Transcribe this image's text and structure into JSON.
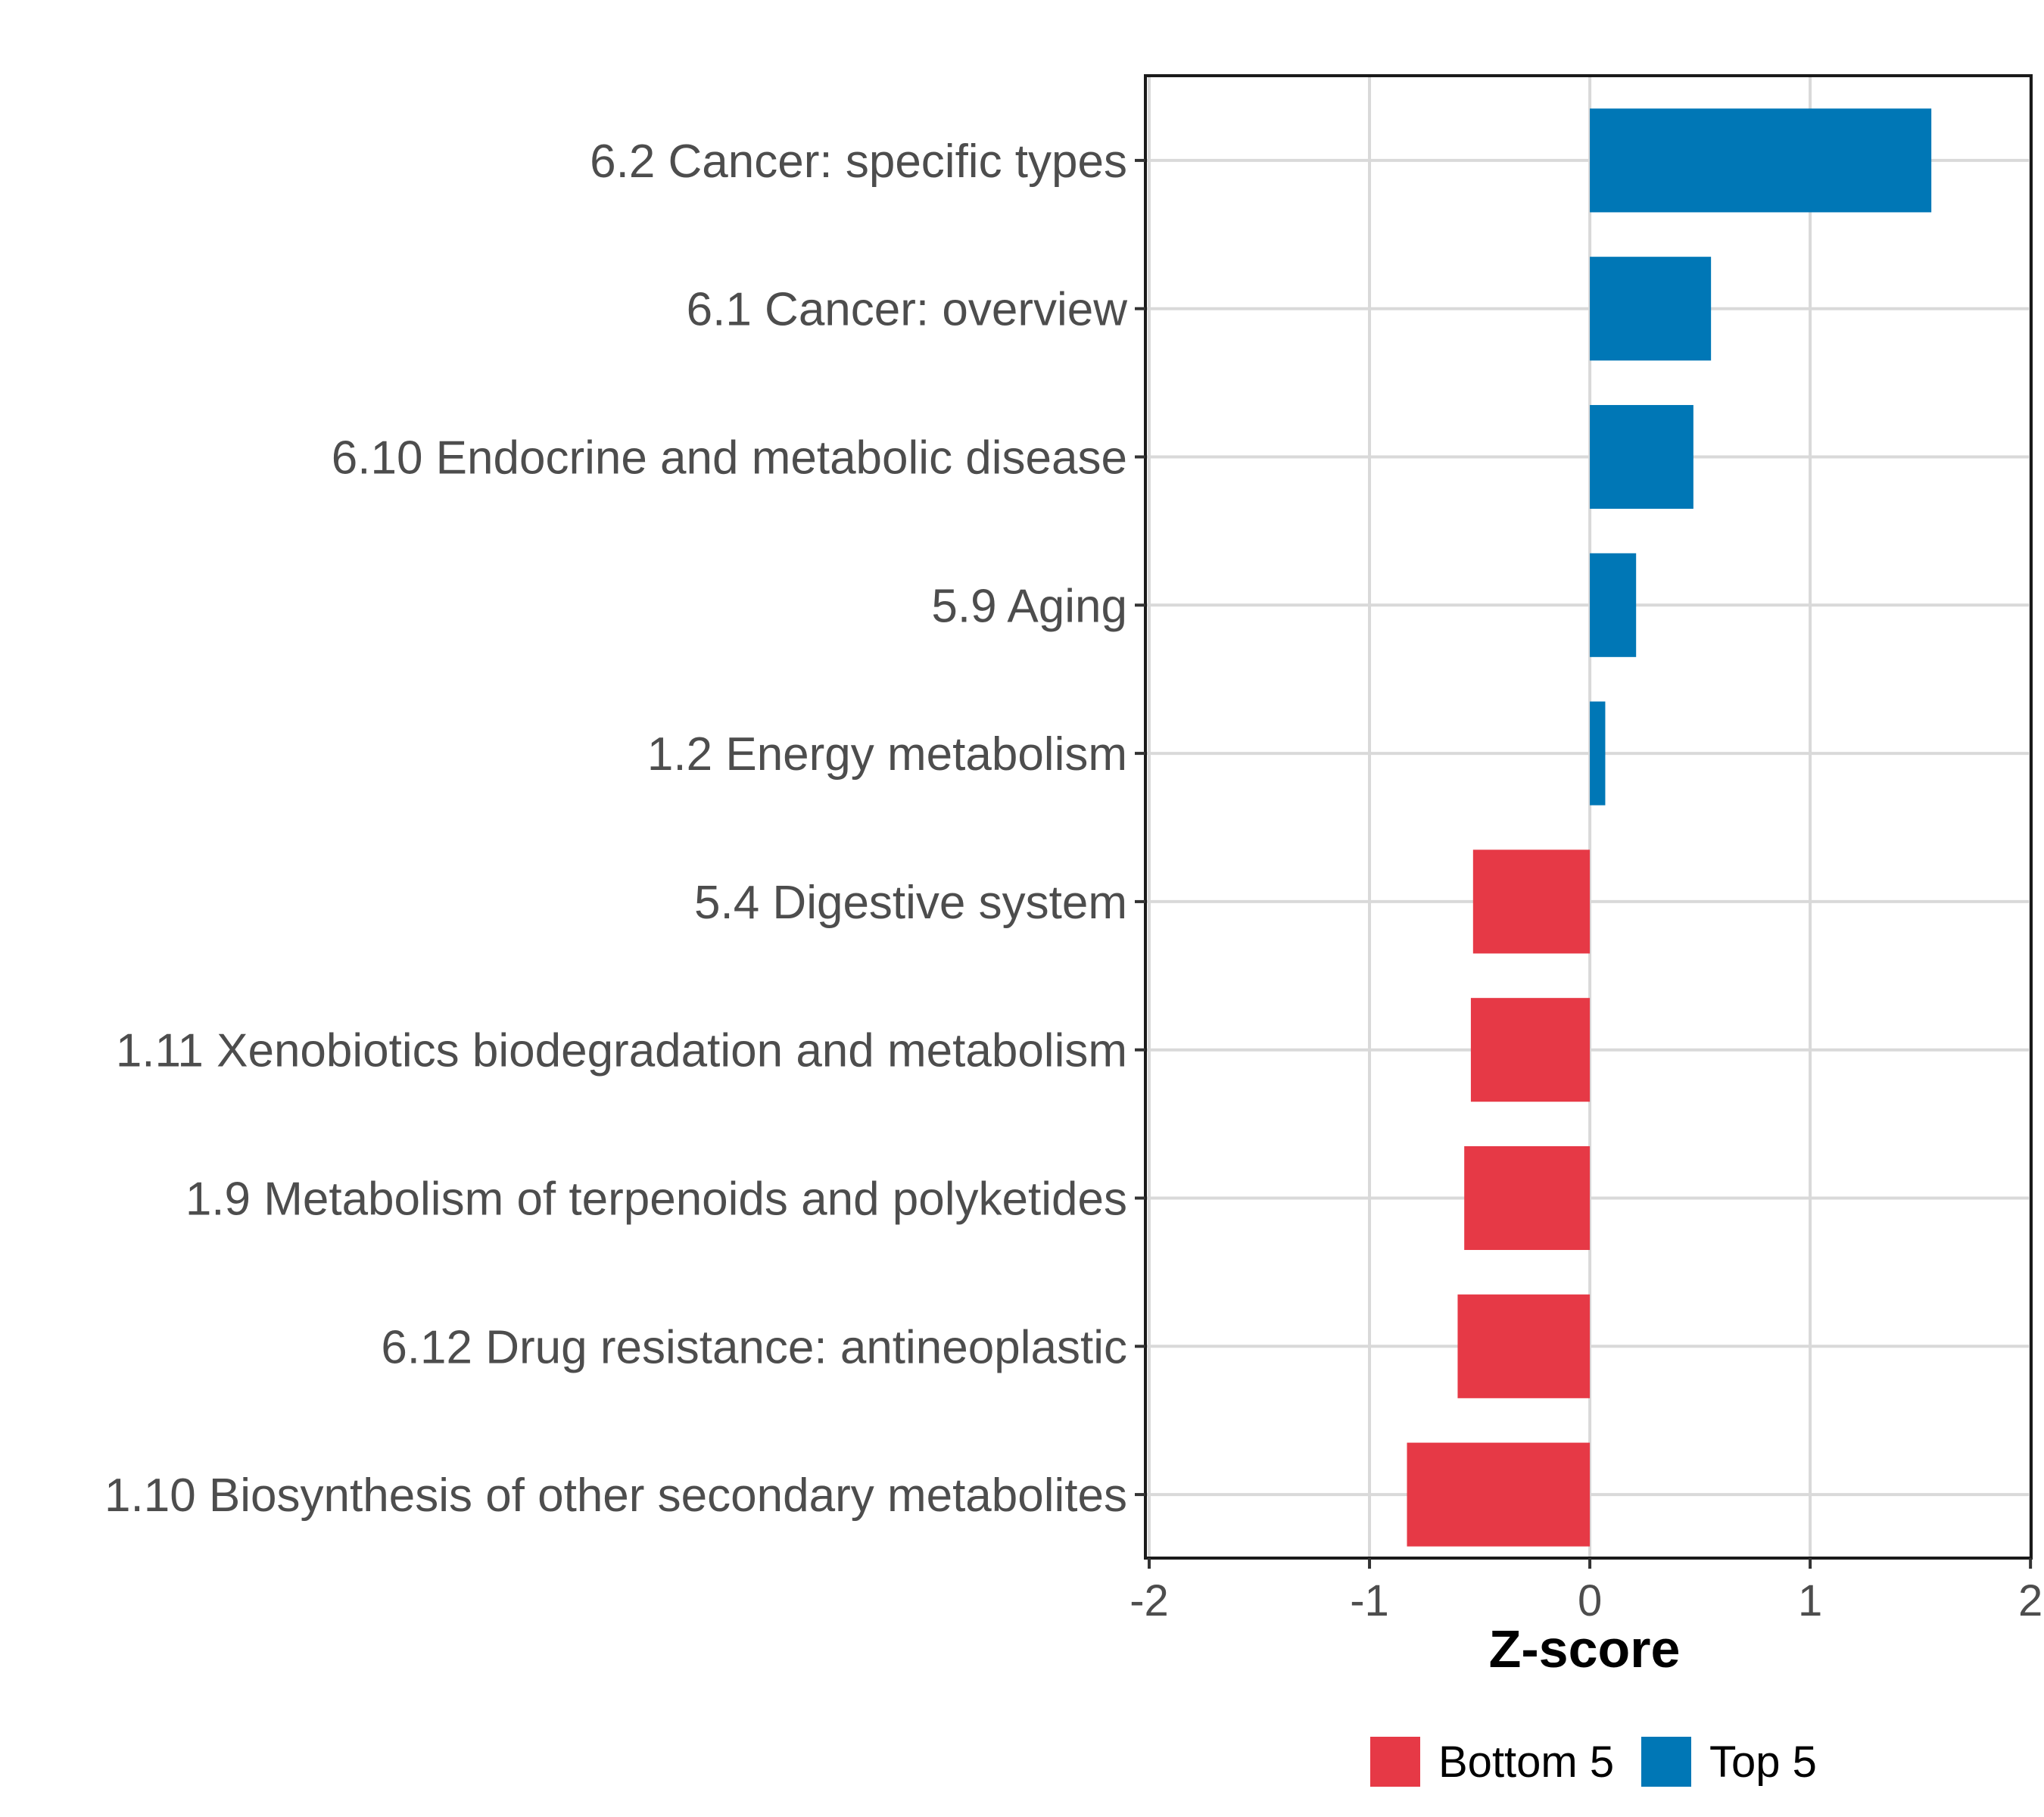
{
  "chart_data": {
    "type": "bar",
    "orientation": "horizontal",
    "title": "",
    "xlabel": "Z-score",
    "ylabel": "",
    "xlim": [
      -2,
      2
    ],
    "xticks": [
      -2,
      -1,
      0,
      1,
      2
    ],
    "xtick_labels": [
      "-2",
      "-1",
      "0",
      "1",
      "2"
    ],
    "grid": true,
    "legend_position": "bottom",
    "categories": [
      "6.2 Cancer: specific types",
      "6.1 Cancer: overview",
      "6.10 Endocrine and metabolic disease",
      "5.9 Aging",
      "1.2 Energy metabolism",
      "5.4 Digestive system",
      "1.11 Xenobiotics biodegradation and metabolism",
      "1.9 Metabolism of terpenoids and polyketides",
      "6.12 Drug resistance: antineoplastic",
      "1.10 Biosynthesis of other secondary metabolites"
    ],
    "values": [
      1.55,
      0.55,
      0.47,
      0.21,
      0.07,
      -0.53,
      -0.54,
      -0.57,
      -0.6,
      -0.83
    ],
    "groups": [
      "Top 5",
      "Top 5",
      "Top 5",
      "Top 5",
      "Top 5",
      "Bottom 5",
      "Bottom 5",
      "Bottom 5",
      "Bottom 5",
      "Bottom 5"
    ],
    "legend": [
      {
        "name": "Bottom 5",
        "color": "#e63946"
      },
      {
        "name": "Top 5",
        "color": "#0077b6"
      }
    ]
  }
}
